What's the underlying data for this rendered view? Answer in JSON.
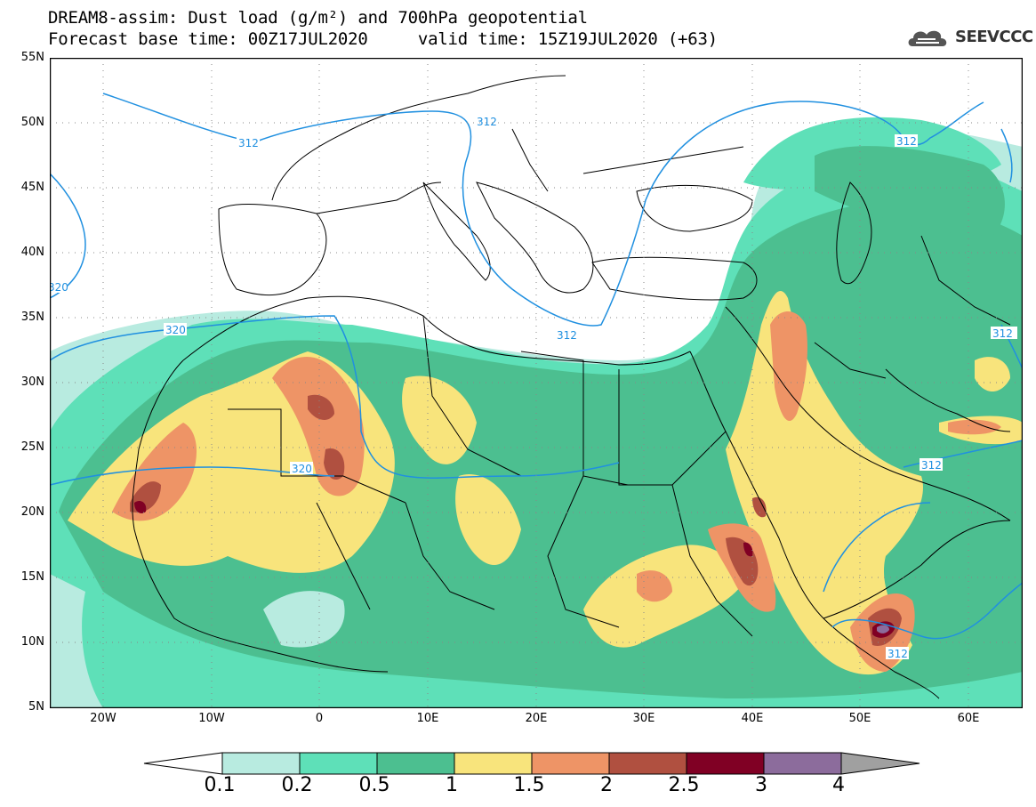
{
  "title": {
    "line1": "DREAM8-assim: Dust load (g/m²) and 700hPa geopotential",
    "line2": "Forecast base time: 00Z17JUL2020     valid time: 15Z19JUL2020 (+63)"
  },
  "logo": {
    "text": "SEEVCCC",
    "icon": "cloud-logo-icon"
  },
  "map": {
    "lat_labels": [
      "55N",
      "50N",
      "45N",
      "40N",
      "35N",
      "30N",
      "25N",
      "20N",
      "15N",
      "10N",
      "5N"
    ],
    "lon_labels": [
      "20W",
      "10W",
      "0",
      "10E",
      "20E",
      "30E",
      "40E",
      "50E",
      "60E"
    ],
    "contour_labels": [
      "312",
      "312",
      "312",
      "312",
      "312",
      "312",
      "320",
      "320",
      "320"
    ]
  },
  "colorbar": {
    "labels": [
      "0.1",
      "0.2",
      "0.5",
      "1",
      "1.5",
      "2",
      "2.5",
      "3",
      "4"
    ],
    "colors": [
      "#ffffff",
      "#b8ebe0",
      "#5ee0b8",
      "#4cbf90",
      "#f8e47c",
      "#ee9466",
      "#b05040",
      "#800024",
      "#8c6c9c",
      "#a0a0a0"
    ]
  },
  "colors": {
    "contour": "#2090e0",
    "border": "#000000",
    "c01": "#b8ebe0",
    "c02": "#5ee0b8",
    "c05": "#4cbf90",
    "c1": "#f8e47c",
    "c15": "#ee9466",
    "c2": "#b05040",
    "c25": "#800024",
    "c3": "#8c6c9c"
  }
}
